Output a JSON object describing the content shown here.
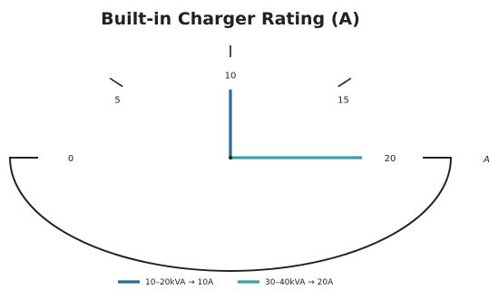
{
  "chart_data": {
    "type": "gauge",
    "title": "Built-in Charger Rating (A)",
    "unit": "A",
    "range": [
      0,
      20
    ],
    "ticks": [
      0,
      5,
      10,
      15,
      20
    ],
    "series": [
      {
        "name": "10–20kVA → 10A",
        "value": 10,
        "color": "#2b6a9b"
      },
      {
        "name": "30–40kVA → 20A",
        "value": 20,
        "color": "#3aa0a8"
      }
    ]
  }
}
